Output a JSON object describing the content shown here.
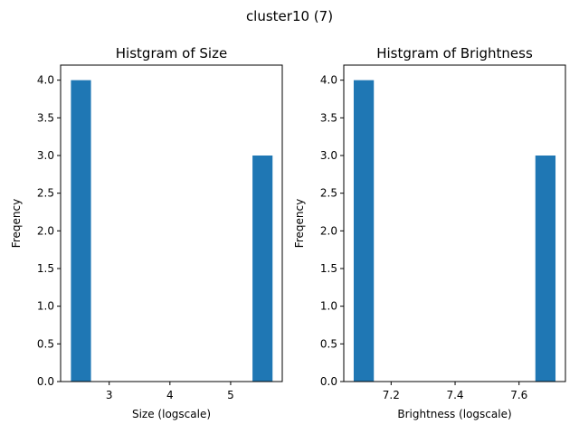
{
  "figure": {
    "title": "cluster10 (7)"
  },
  "colors": {
    "bar": "#1f77b4",
    "axis": "#000000",
    "background": "#ffffff"
  },
  "chart_data": [
    {
      "type": "bar",
      "title": "Histgram of Size",
      "xlabel": "Size (logscale)",
      "ylabel": "Freqency",
      "xlim": [
        2.2,
        5.85
      ],
      "ylim": [
        0,
        4.2
      ],
      "xticks": [
        3,
        4,
        5
      ],
      "xtick_labels": [
        "3",
        "4",
        "5"
      ],
      "yticks": [
        0,
        0.5,
        1,
        1.5,
        2,
        2.5,
        3,
        3.5,
        4
      ],
      "ytick_labels": [
        "0.0",
        "0.5",
        "1.0",
        "1.5",
        "2.0",
        "2.5",
        "3.0",
        "3.5",
        "4.0"
      ],
      "bins": [
        {
          "x0": 2.37,
          "x1": 2.7,
          "count": 4
        },
        {
          "x0": 5.36,
          "x1": 5.69,
          "count": 3
        }
      ],
      "grid": false
    },
    {
      "type": "bar",
      "title": "Histgram of Brightness",
      "xlabel": "Brightness (logscale)",
      "ylabel": "Freqency",
      "xlim": [
        7.052,
        7.745
      ],
      "ylim": [
        0,
        4.2
      ],
      "xticks": [
        7.2,
        7.4,
        7.6
      ],
      "xtick_labels": [
        "7.2",
        "7.4",
        "7.6"
      ],
      "yticks": [
        0,
        0.5,
        1,
        1.5,
        2,
        2.5,
        3,
        3.5,
        4
      ],
      "ytick_labels": [
        "0.0",
        "0.5",
        "1.0",
        "1.5",
        "2.0",
        "2.5",
        "3.0",
        "3.5",
        "4.0"
      ],
      "bins": [
        {
          "x0": 7.083,
          "x1": 7.146,
          "count": 4
        },
        {
          "x0": 7.651,
          "x1": 7.714,
          "count": 3
        }
      ],
      "grid": false
    }
  ]
}
